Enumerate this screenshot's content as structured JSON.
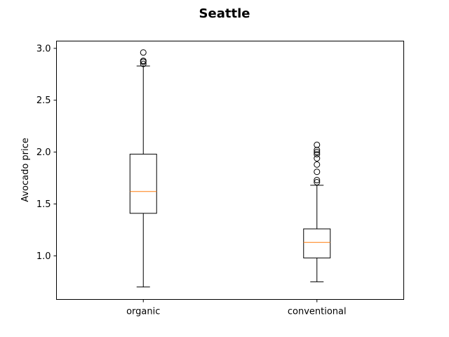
{
  "chart_data": {
    "type": "box",
    "title": "Seattle",
    "xlabel": "",
    "ylabel": "Avocado price",
    "ylim": [
      0.58,
      3.07
    ],
    "yticks": [
      1.0,
      1.5,
      2.0,
      2.5,
      3.0
    ],
    "ytick_labels": [
      "1.0",
      "1.5",
      "2.0",
      "2.5",
      "3.0"
    ],
    "grid": false,
    "categories": [
      "organic",
      "conventional"
    ],
    "series": [
      {
        "category": "organic",
        "whisker_low": 0.7,
        "q1": 1.41,
        "median": 1.62,
        "q3": 1.98,
        "whisker_high": 2.83,
        "outliers": [
          2.85,
          2.87,
          2.88,
          2.96
        ]
      },
      {
        "category": "conventional",
        "whisker_low": 0.75,
        "q1": 0.98,
        "median": 1.13,
        "q3": 1.26,
        "whisker_high": 1.68,
        "outliers": [
          1.71,
          1.73,
          1.81,
          1.88,
          1.94,
          1.98,
          2.0,
          2.02,
          2.07
        ]
      }
    ],
    "colors": {
      "box": "#000000",
      "median": "#ff7f0e",
      "outlier": "#000000",
      "background": "#ffffff"
    }
  }
}
